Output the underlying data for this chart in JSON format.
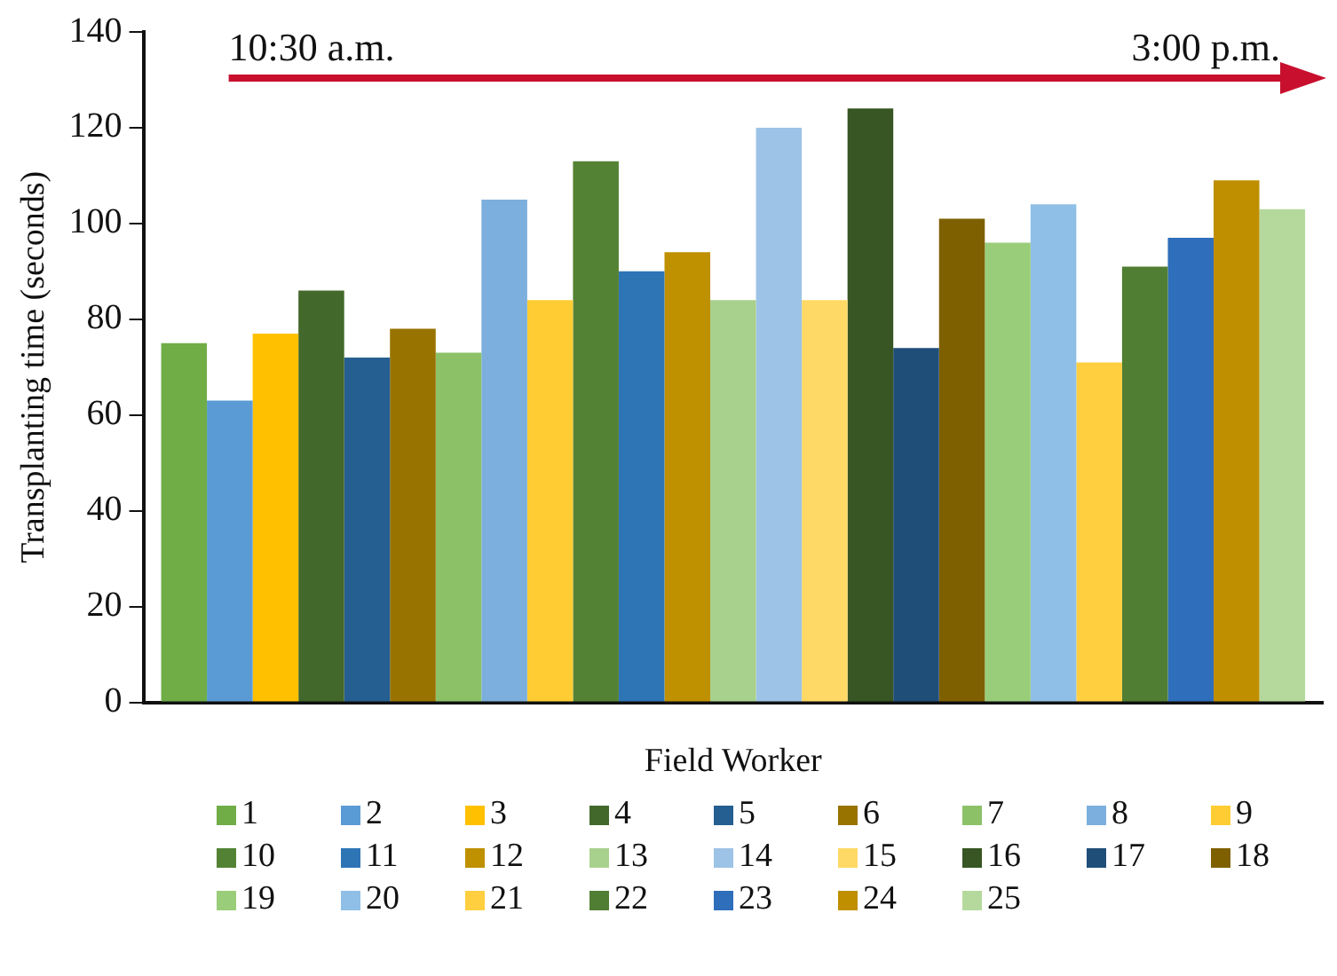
{
  "chart_data": {
    "type": "bar",
    "xlabel": "Field Worker",
    "ylabel": "Transplanting time (seconds)",
    "categories": [
      null
    ],
    "series": [
      {
        "name": "1",
        "color": "#70ad47",
        "values": [
          75
        ]
      },
      {
        "name": "2",
        "color": "#5b9bd5",
        "values": [
          63
        ]
      },
      {
        "name": "3",
        "color": "#ffc000",
        "values": [
          77
        ]
      },
      {
        "name": "4",
        "color": "#43682b",
        "values": [
          86
        ]
      },
      {
        "name": "5",
        "color": "#255e91",
        "values": [
          72
        ]
      },
      {
        "name": "6",
        "color": "#997300",
        "values": [
          78
        ]
      },
      {
        "name": "7",
        "color": "#8cc168",
        "values": [
          73
        ]
      },
      {
        "name": "8",
        "color": "#7cafdd",
        "values": [
          105
        ]
      },
      {
        "name": "9",
        "color": "#ffcd33",
        "values": [
          84
        ]
      },
      {
        "name": "10",
        "color": "#548235",
        "values": [
          113
        ]
      },
      {
        "name": "11",
        "color": "#2e75b6",
        "values": [
          90
        ]
      },
      {
        "name": "12",
        "color": "#bf9000",
        "values": [
          94
        ]
      },
      {
        "name": "13",
        "color": "#a9d18e",
        "values": [
          84
        ]
      },
      {
        "name": "14",
        "color": "#9dc3e6",
        "values": [
          120
        ]
      },
      {
        "name": "15",
        "color": "#ffd966",
        "values": [
          84
        ]
      },
      {
        "name": "16",
        "color": "#375623",
        "values": [
          124
        ]
      },
      {
        "name": "17",
        "color": "#1f4e79",
        "values": [
          74
        ]
      },
      {
        "name": "18",
        "color": "#7f6000",
        "values": [
          101
        ]
      },
      {
        "name": "19",
        "color": "#9acd7a",
        "values": [
          96
        ]
      },
      {
        "name": "20",
        "color": "#8fbfe6",
        "values": [
          104
        ]
      },
      {
        "name": "21",
        "color": "#ffcf40",
        "values": [
          71
        ]
      },
      {
        "name": "22",
        "color": "#507e32",
        "values": [
          91
        ]
      },
      {
        "name": "23",
        "color": "#2f6eba",
        "values": [
          97
        ]
      },
      {
        "name": "24",
        "color": "#bf8f00",
        "values": [
          109
        ]
      },
      {
        "name": "25",
        "color": "#b5d99c",
        "values": [
          103
        ]
      }
    ],
    "ylim": [
      0,
      140
    ],
    "yticks": [
      0,
      20,
      40,
      60,
      80,
      100,
      120,
      140
    ],
    "grid": false,
    "legend": "bottom",
    "annotations": [
      "10:30 a.m.",
      "3:00 p.m."
    ]
  }
}
